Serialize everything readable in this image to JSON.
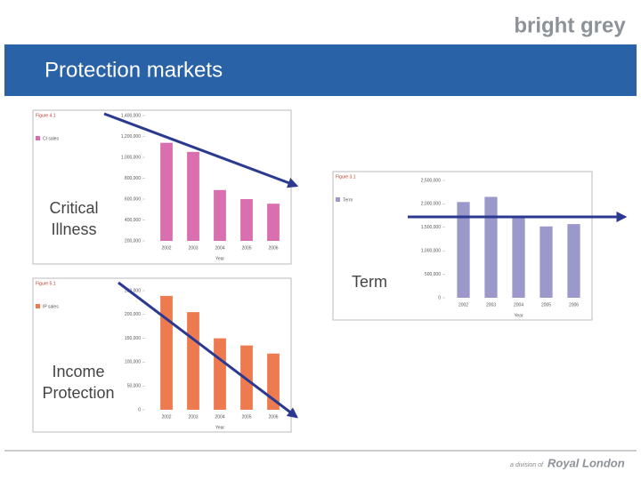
{
  "header": {
    "logo": "bright grey",
    "title": "Protection markets"
  },
  "charts": [
    {
      "label": [
        "Critical",
        "Illness"
      ],
      "figure": "Figure 4.1",
      "legend": "CI sales",
      "x_label": "Year",
      "color": "#d96fae",
      "categories": [
        "2002",
        "2003",
        "2004",
        "2005",
        "2006"
      ],
      "values": [
        1139000,
        1052000,
        687000,
        600000,
        556000
      ],
      "ylim": [
        200000,
        1400000
      ],
      "yticks": [
        {
          "value": 200000,
          "label": "200,000"
        },
        {
          "value": 400000,
          "label": "400,000"
        },
        {
          "value": 600000,
          "label": "600,000"
        },
        {
          "value": 800000,
          "label": "800,000"
        },
        {
          "value": 1000000,
          "label": "1,000,000"
        },
        {
          "value": 1200000,
          "label": "1,200,000"
        },
        {
          "value": 1400000,
          "label": "1,400,000"
        }
      ]
    },
    {
      "label": [
        "Term"
      ],
      "figure": "Figure 3.1",
      "legend": "Term",
      "x_label": "Year",
      "color": "#9b98cc",
      "categories": [
        "2002",
        "2003",
        "2004",
        "2005",
        "2006"
      ],
      "values": [
        2040000,
        2150000,
        1700000,
        1520000,
        1570000
      ],
      "ylim": [
        0,
        2500000
      ],
      "yticks": [
        0,
        {
          "value": 500000,
          "label": "500,000"
        },
        {
          "value": 1000000,
          "label": "1,000,000"
        },
        {
          "value": 1500000,
          "label": "1,500,000"
        },
        {
          "value": 2000000,
          "label": "2,000,000"
        },
        {
          "value": 2500000,
          "label": "2,500,000"
        }
      ]
    },
    {
      "label": [
        "Income",
        "Protection"
      ],
      "figure": "Figure 5.1",
      "legend": "IP sales",
      "x_label": "Year",
      "color": "#ee7b50",
      "categories": [
        "2002",
        "2003",
        "2004",
        "2005",
        "2006"
      ],
      "values": [
        239000,
        205000,
        150000,
        135000,
        118000
      ],
      "ylim": [
        0,
        250000
      ],
      "yticks": [
        0,
        {
          "value": 50000,
          "label": "50,000"
        },
        {
          "value": 100000,
          "label": "100,000"
        },
        {
          "value": 150000,
          "label": "150,000"
        },
        {
          "value": 200000,
          "label": "200,000"
        },
        {
          "value": 250000,
          "label": "250,000"
        }
      ]
    }
  ],
  "footer": {
    "prefix": "a division of",
    "brand": "Royal London"
  }
}
